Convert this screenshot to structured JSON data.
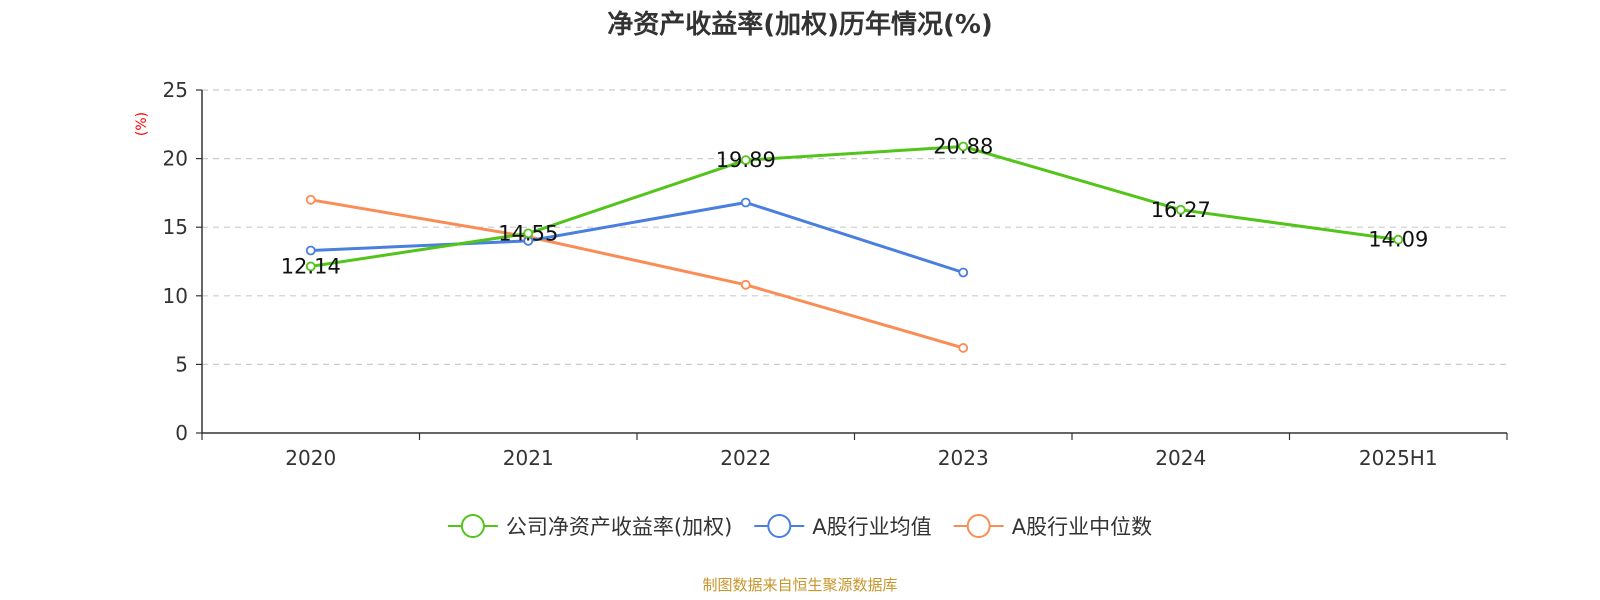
{
  "chart_data": {
    "type": "line",
    "title": "净资产收益率(加权)历年情况(%)",
    "ylabel": "(%)",
    "ylim": [
      0,
      25
    ],
    "yticks": [
      0,
      5,
      10,
      15,
      20,
      25
    ],
    "categories": [
      "2020",
      "2021",
      "2022",
      "2023",
      "2024",
      "2025H1"
    ],
    "grid": true,
    "legend_position": "bottom",
    "series": [
      {
        "name": "公司净资产收益率(加权)",
        "color": "#52c41a",
        "values": [
          12.14,
          14.55,
          19.89,
          20.88,
          16.27,
          14.09
        ],
        "show_labels": true
      },
      {
        "name": "A股行业均值",
        "color": "#4a7fe0",
        "values": [
          13.3,
          14.0,
          16.8,
          11.7,
          null,
          null
        ],
        "show_labels": false
      },
      {
        "name": "A股行业中位数",
        "color": "#fa8c55",
        "values": [
          17.0,
          14.3,
          10.8,
          6.2,
          null,
          null
        ],
        "show_labels": false
      }
    ]
  },
  "colors": {
    "ylabel": "#ff0000",
    "source": "#c8952a",
    "grid": "#cccccc",
    "axis": "#333333"
  },
  "source": "制图数据来自恒生聚源数据库"
}
